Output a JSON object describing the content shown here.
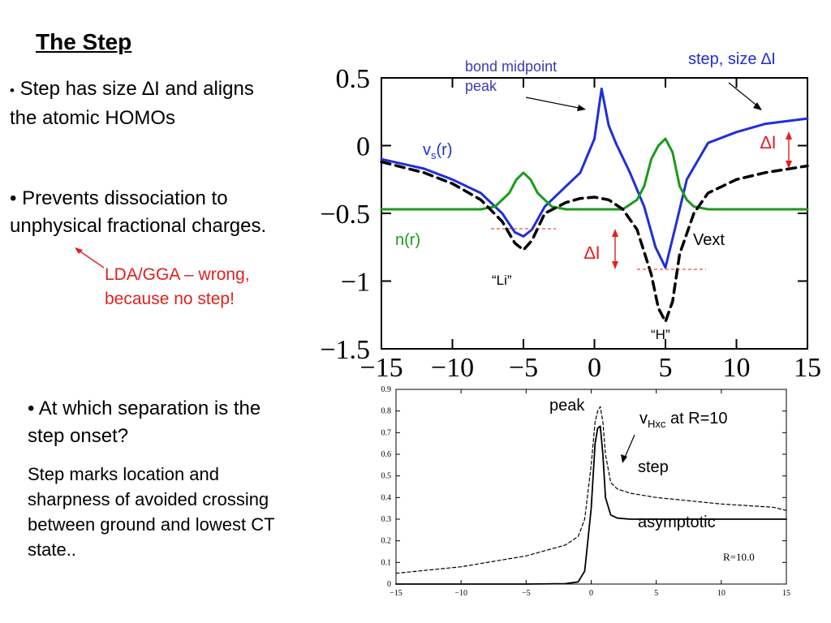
{
  "slide": {
    "title": "The Step",
    "bullet1": {
      "a": "Step has size ",
      "delta": "∆",
      "b": "I and aligns",
      "c": "the atomic HOMOs"
    },
    "bullet2": {
      "a": "Prevents dissociation to",
      "b": "unphysical fractional charges."
    },
    "note": {
      "a": "LDA/GGA – wrong,",
      "b": "because no step!"
    },
    "bullet3": {
      "a": "At which separation is the",
      "b": "step onset?"
    },
    "para": {
      "a": "Step marks location and",
      "b": "sharpness of avoided crossing",
      "c": "between ground and lowest CT",
      "d": "state.."
    }
  },
  "top_chart": {
    "labels": {
      "bond_midpoint": "bond midpoint",
      "peak": "peak",
      "step_size": "step, size ∆I",
      "vs_v": "v",
      "vs_s": "s",
      "vs_r": "(r)",
      "nr": "n(r)",
      "vext": "Vext",
      "li": "“Li”",
      "h": "“H”",
      "dI_right": "∆I",
      "dI_mid": "∆I"
    },
    "colors": {
      "vs": "#1f2fd6",
      "n": "#1b9a1b",
      "vext": "#000000",
      "marker": "#e02020",
      "label_blue": "#3b3bb0"
    },
    "chart_data": {
      "type": "line",
      "xlim": [
        -15,
        15
      ],
      "ylim": [
        -1.5,
        0.5
      ],
      "x_ticks": [
        -15,
        -10,
        -5,
        0,
        5,
        10,
        15
      ],
      "x_tick_labels": [
        "−15",
        "−10",
        "−5",
        "0",
        "5",
        "10",
        "15"
      ],
      "y_ticks": [
        0.5,
        0,
        -0.5,
        -1,
        -1.5
      ],
      "y_tick_labels": [
        "0.5",
        "0",
        "−0.5",
        "−1",
        "−1.5"
      ],
      "series": [
        {
          "name": "vs(r)",
          "x": [
            -15,
            -12,
            -10,
            -8,
            -6.5,
            -5.6,
            -5,
            -4.4,
            -3.5,
            -2,
            -1,
            0,
            0.5,
            1,
            1.5,
            2.5,
            3.5,
            4.3,
            5,
            5.7,
            6.5,
            8,
            10,
            12,
            15
          ],
          "y": [
            -0.1,
            -0.17,
            -0.25,
            -0.35,
            -0.5,
            -0.64,
            -0.67,
            -0.62,
            -0.45,
            -0.3,
            -0.2,
            0.05,
            0.42,
            0.15,
            0.02,
            -0.2,
            -0.45,
            -0.75,
            -0.9,
            -0.6,
            -0.25,
            0.02,
            0.1,
            0.16,
            0.2
          ]
        },
        {
          "name": "n(r)",
          "x": [
            -15,
            -8,
            -7,
            -6,
            -5.5,
            -5,
            -4.5,
            -4,
            -3,
            -2,
            0,
            2,
            3,
            3.5,
            4,
            4.5,
            5,
            5.5,
            6,
            6.5,
            7,
            8,
            15
          ],
          "y": [
            -0.47,
            -0.47,
            -0.45,
            -0.35,
            -0.25,
            -0.2,
            -0.25,
            -0.35,
            -0.45,
            -0.47,
            -0.47,
            -0.47,
            -0.4,
            -0.3,
            -0.1,
            0.0,
            0.05,
            -0.05,
            -0.3,
            -0.4,
            -0.45,
            -0.47,
            -0.47
          ]
        },
        {
          "name": "Vext",
          "x": [
            -15,
            -12,
            -10,
            -8,
            -6.5,
            -5.6,
            -5,
            -4.4,
            -3.5,
            -2,
            -1,
            0,
            1,
            2,
            3,
            4,
            4.5,
            5,
            5.5,
            6,
            7,
            8,
            10,
            12,
            15
          ],
          "y": [
            -0.12,
            -0.2,
            -0.28,
            -0.4,
            -0.56,
            -0.72,
            -0.77,
            -0.7,
            -0.5,
            -0.42,
            -0.39,
            -0.38,
            -0.4,
            -0.47,
            -0.62,
            -0.95,
            -1.2,
            -1.3,
            -1.15,
            -0.8,
            -0.5,
            -0.35,
            -0.25,
            -0.2,
            -0.15
          ]
        }
      ]
    }
  },
  "bottom_chart": {
    "labels": {
      "peak": "peak",
      "vhxc_v": "v",
      "vhxc_sub": "Hxc",
      "vhxc_rest": " at R=10",
      "step": "step",
      "asymptotic": "asymptotic",
      "r_label": "R=10.0"
    },
    "chart_data": {
      "type": "line",
      "xlim": [
        -15,
        15
      ],
      "ylim": [
        0,
        0.9
      ],
      "x_ticks": [
        -15,
        -10,
        -5,
        0,
        5,
        10,
        15
      ],
      "x_tick_labels": [
        "−15",
        "−10",
        "−5",
        "0",
        "5",
        "10",
        "15"
      ],
      "y_ticks": [
        0,
        0.1,
        0.2,
        0.3,
        0.4,
        0.5,
        0.6,
        0.7,
        0.8,
        0.9
      ],
      "y_tick_labels": [
        "0",
        "0.1",
        "0.2",
        "0.3",
        "0.4",
        "0.5",
        "0.6",
        "0.7",
        "0.8",
        "0.9"
      ],
      "series": [
        {
          "name": "solid",
          "x": [
            -15,
            -5,
            -2,
            -1,
            -0.5,
            0,
            0.3,
            0.5,
            0.7,
            0.9,
            1.1,
            1.5,
            2,
            3,
            5,
            10,
            15
          ],
          "y": [
            0,
            0,
            0.002,
            0.01,
            0.06,
            0.35,
            0.65,
            0.72,
            0.73,
            0.6,
            0.4,
            0.32,
            0.305,
            0.3,
            0.3,
            0.3,
            0.3
          ]
        },
        {
          "name": "dashed",
          "x": [
            -15,
            -10,
            -5,
            -2,
            -1,
            -0.5,
            0,
            0.3,
            0.5,
            0.7,
            0.9,
            1.1,
            1.5,
            2,
            3,
            5,
            10,
            14,
            15
          ],
          "y": [
            0.05,
            0.08,
            0.13,
            0.18,
            0.22,
            0.3,
            0.55,
            0.75,
            0.8,
            0.82,
            0.75,
            0.6,
            0.47,
            0.44,
            0.42,
            0.4,
            0.37,
            0.355,
            0.34
          ]
        }
      ]
    }
  }
}
